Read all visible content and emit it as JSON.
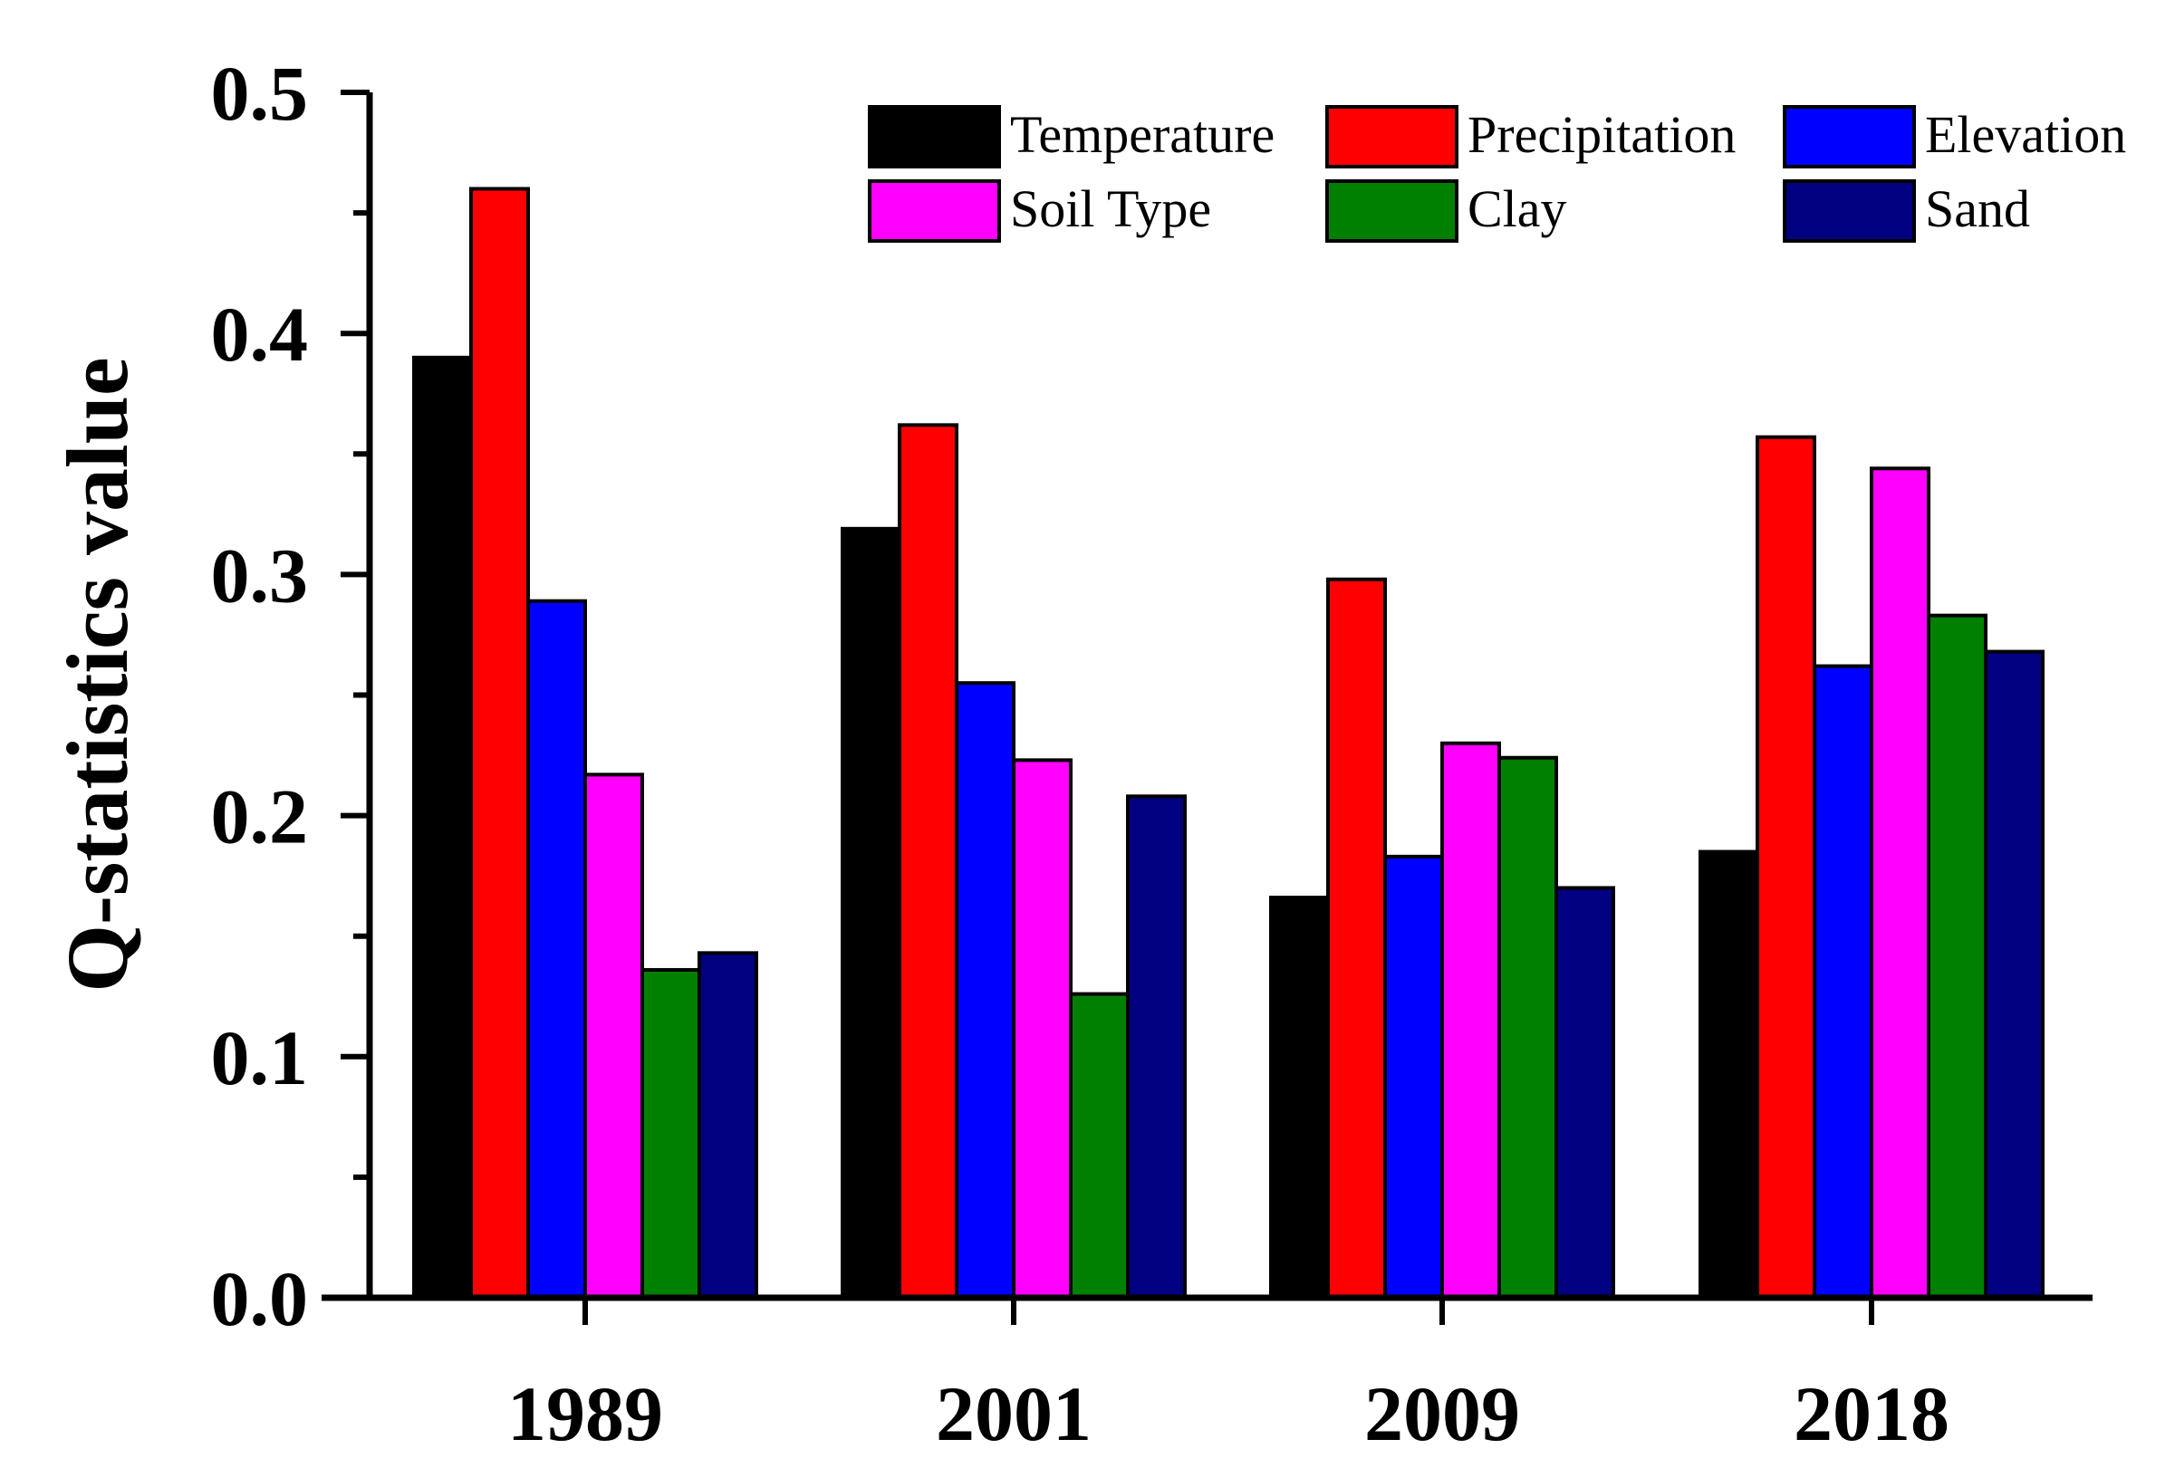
{
  "chart_data": {
    "type": "bar",
    "title": "",
    "xlabel": "",
    "ylabel": "Q-statistics value",
    "ylim": [
      0,
      0.5
    ],
    "yticks": [
      "0.0",
      "0.1",
      "0.2",
      "0.3",
      "0.4",
      "0.5"
    ],
    "categories": [
      "1989",
      "2001",
      "2009",
      "2018"
    ],
    "series": [
      {
        "name": "Temperature",
        "color": "#000000",
        "values": [
          0.39,
          0.319,
          0.166,
          0.185
        ]
      },
      {
        "name": "Precipitation",
        "color": "#ff0000",
        "values": [
          0.46,
          0.362,
          0.298,
          0.357
        ]
      },
      {
        "name": "Elevation",
        "color": "#0000ff",
        "values": [
          0.289,
          0.255,
          0.183,
          0.262
        ]
      },
      {
        "name": "Soil Type",
        "color": "#ff00ff",
        "values": [
          0.217,
          0.223,
          0.23,
          0.344
        ]
      },
      {
        "name": "Clay",
        "color": "#008000",
        "values": [
          0.136,
          0.126,
          0.224,
          0.283
        ]
      },
      {
        "name": "Sand",
        "color": "#000080",
        "values": [
          0.143,
          0.208,
          0.17,
          0.268
        ]
      }
    ],
    "legend": {
      "placement": "top-right",
      "columns": 3
    },
    "grid": false
  }
}
